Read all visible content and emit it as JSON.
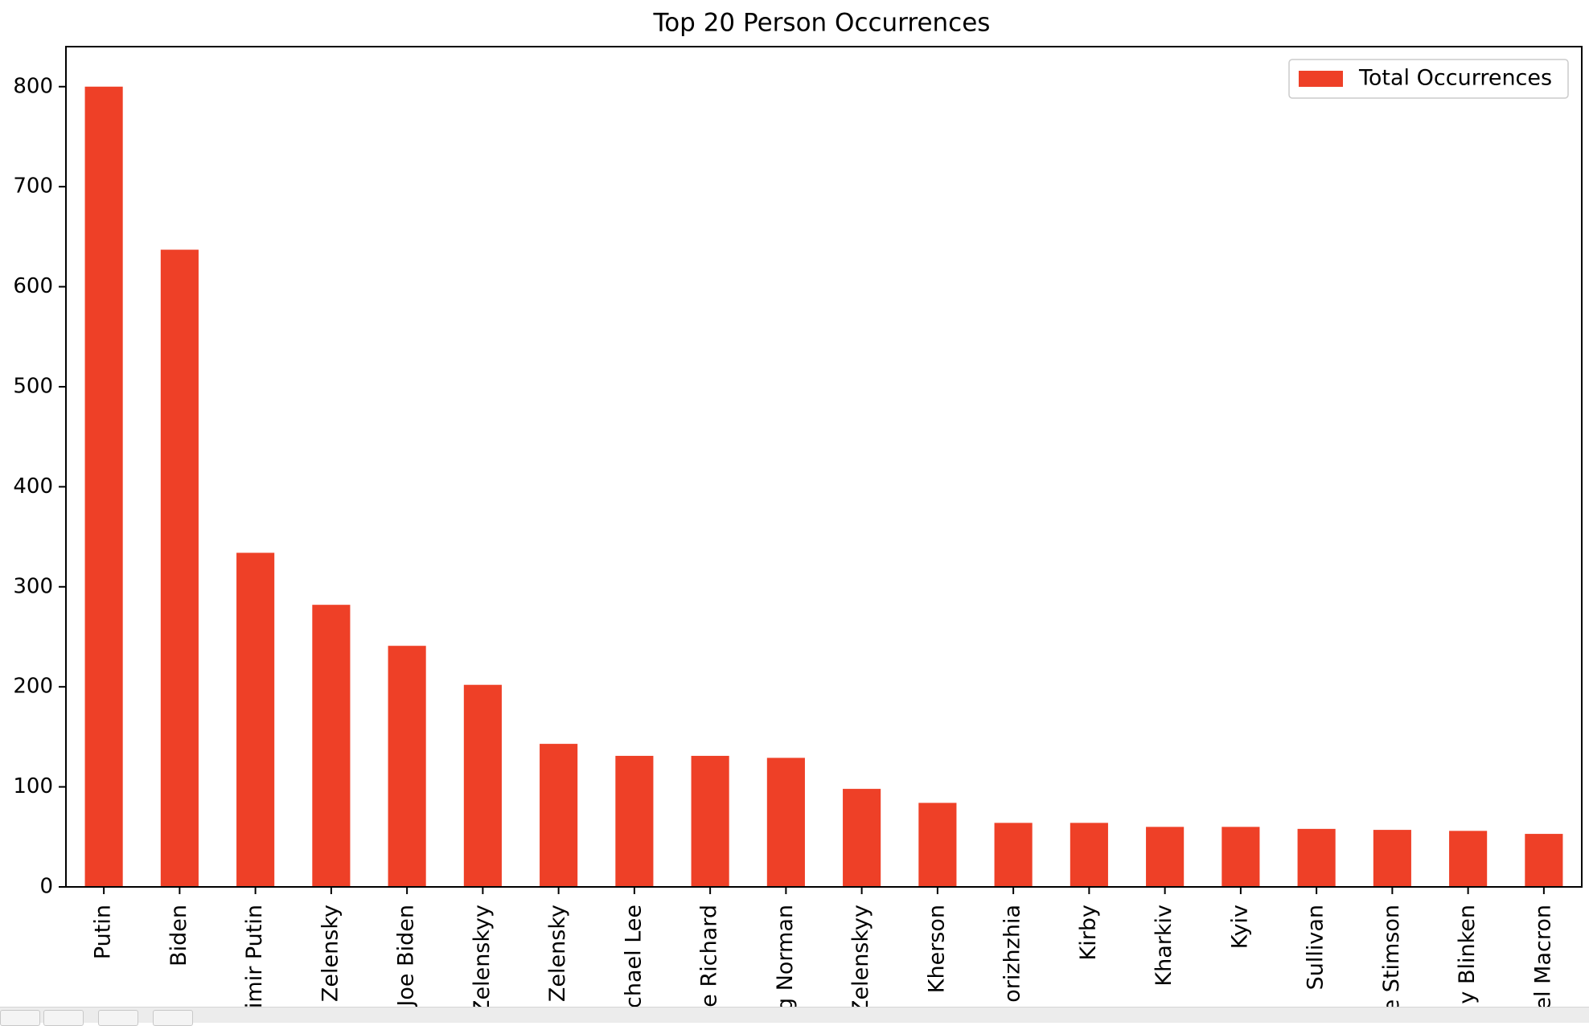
{
  "chart_data": {
    "type": "bar",
    "title": "Top 20 Person Occurrences",
    "xlabel": "",
    "ylabel": "",
    "ylim": [
      0,
      840
    ],
    "yticks": [
      0,
      100,
      200,
      300,
      400,
      500,
      600,
      700,
      800
    ],
    "grid": false,
    "legend_position": "top-right",
    "bar_color": "#ee4027",
    "categories": [
      "Putin",
      "Biden",
      "imir Putin",
      "Zelensky",
      "Joe Biden",
      "Zelenskyy",
      "Zelensky",
      "chael Lee",
      "e Richard",
      "g Norman",
      "Zelenskyy",
      "Kherson",
      "orizhzhia",
      "Kirby",
      "Kharkiv",
      "Kyiv",
      "Sullivan",
      "e Stimson",
      "y Blinken",
      "el Macron"
    ],
    "series": [
      {
        "name": "Total Occurrences",
        "values": [
          800,
          637,
          334,
          282,
          241,
          202,
          143,
          131,
          131,
          129,
          98,
          84,
          64,
          64,
          60,
          60,
          58,
          57,
          56,
          53
        ]
      }
    ]
  }
}
